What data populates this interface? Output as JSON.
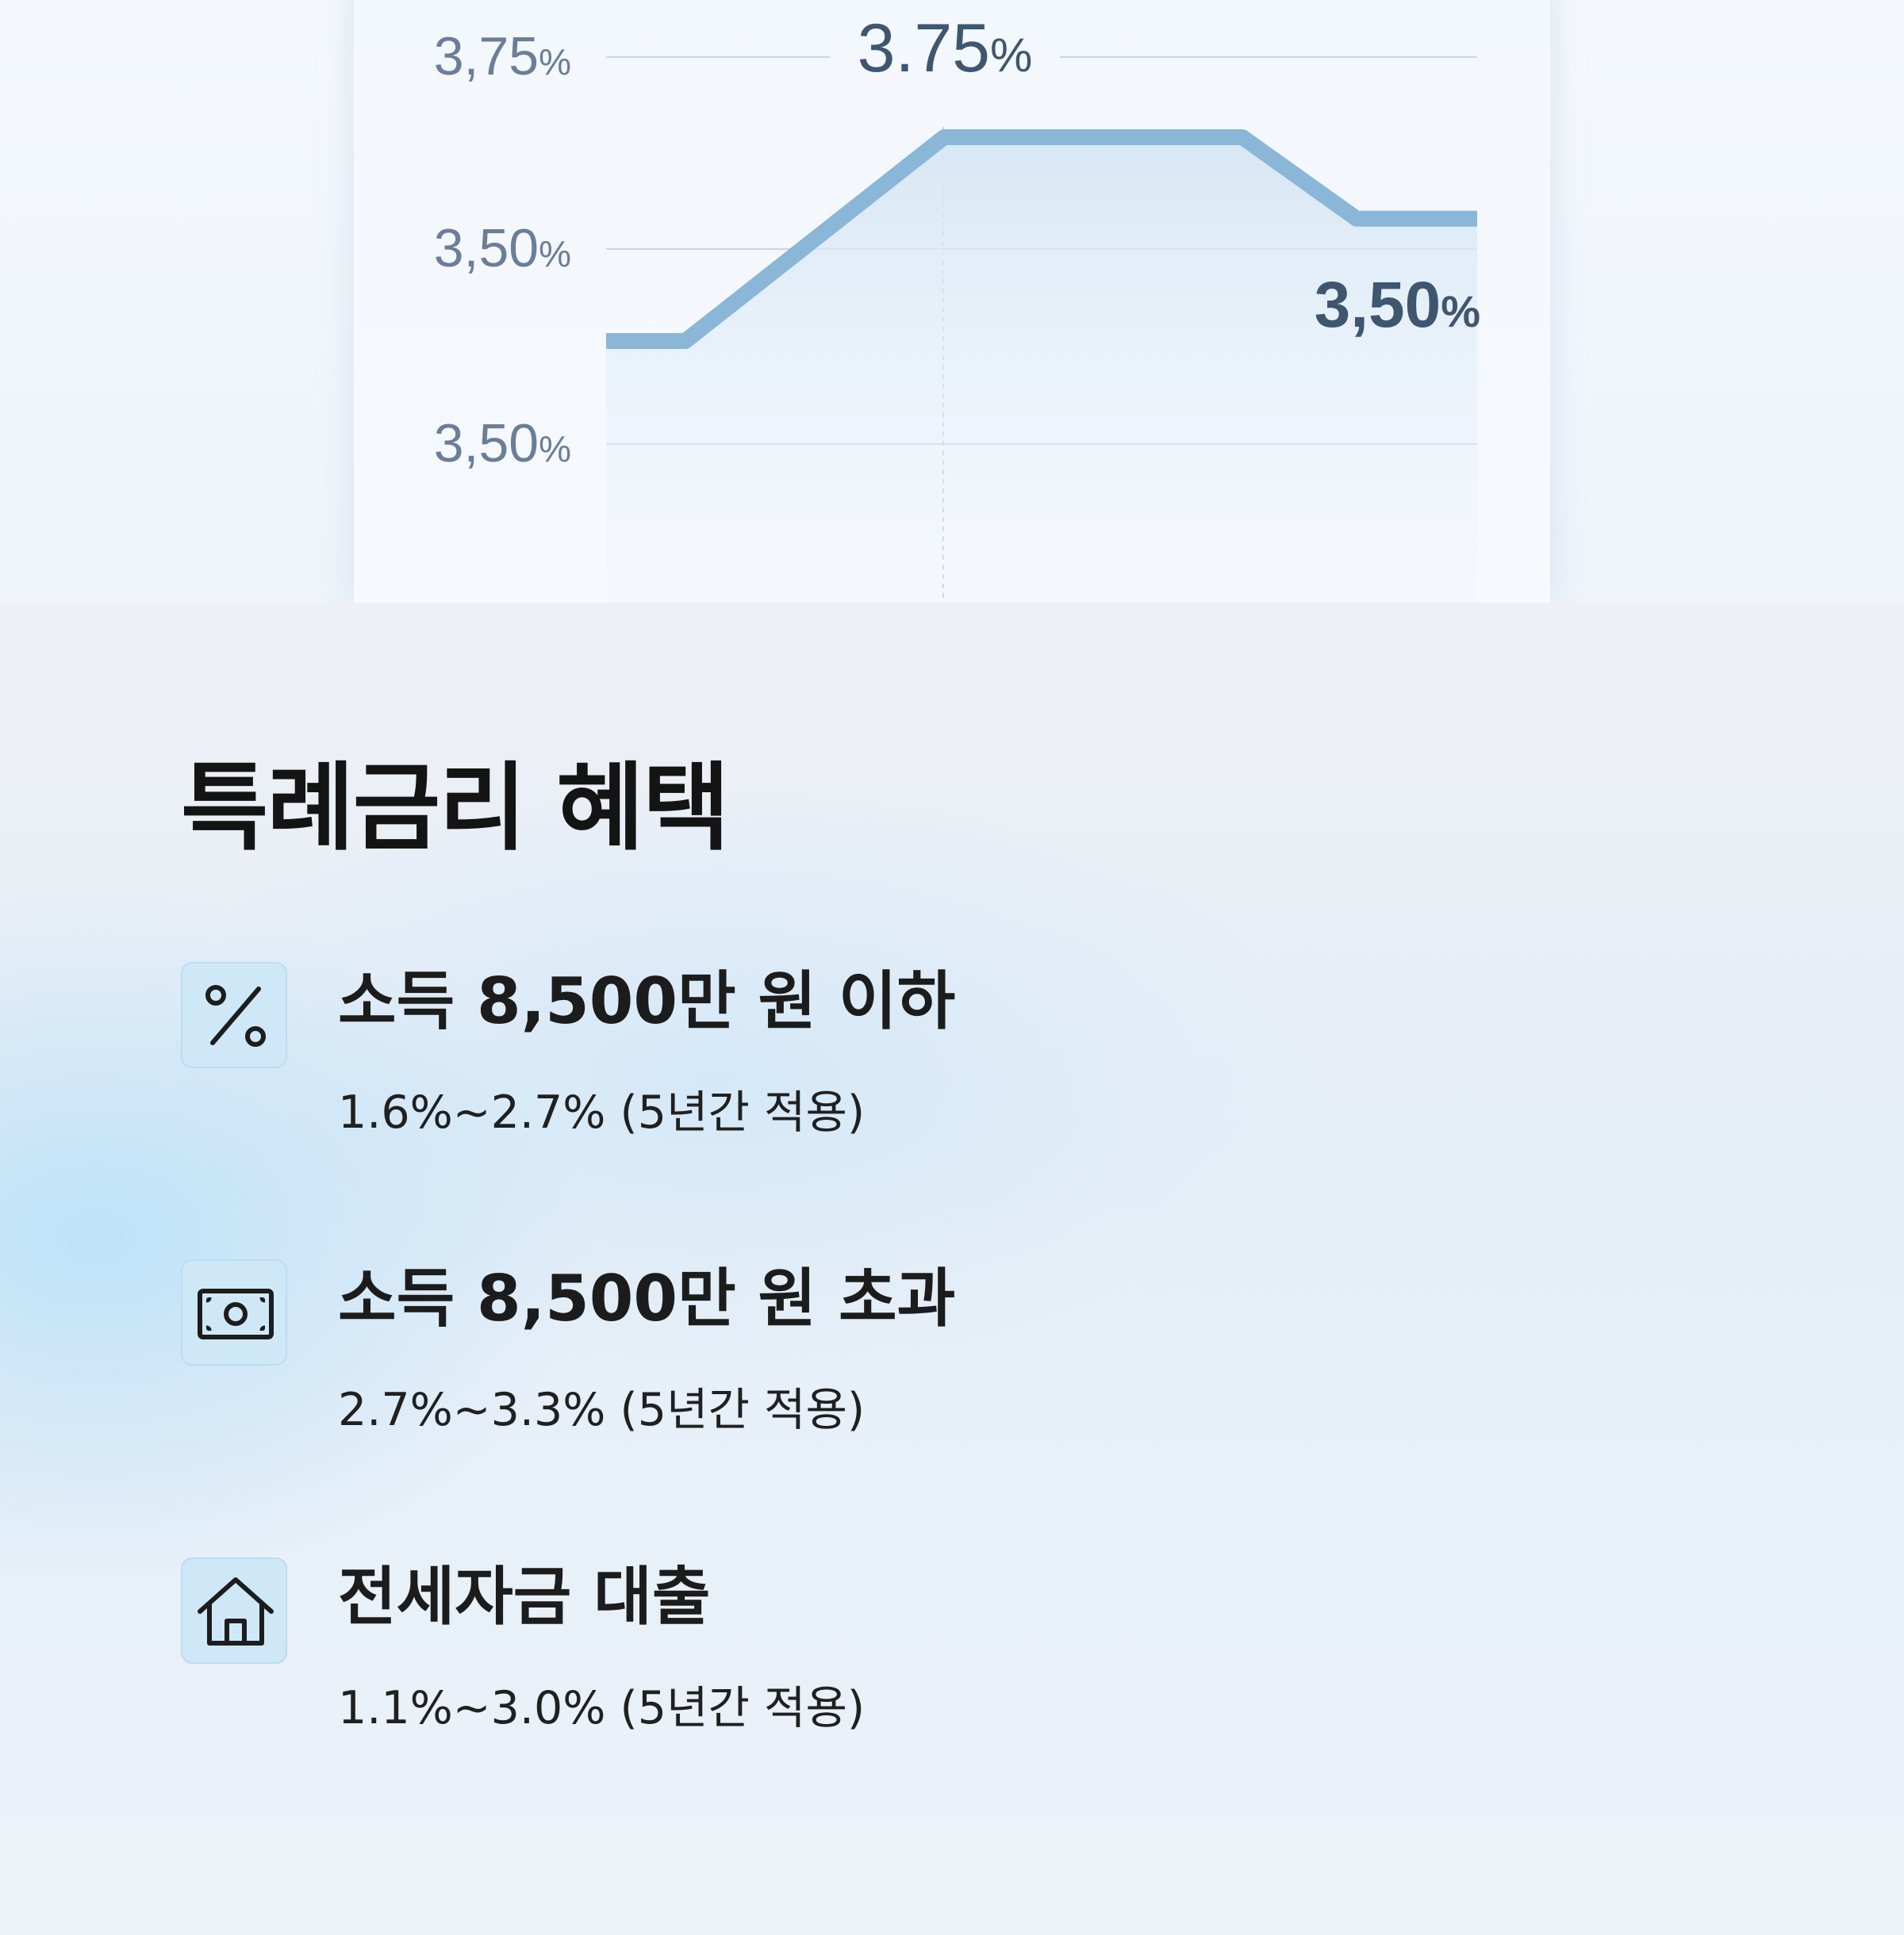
{
  "chart_data": {
    "type": "area",
    "y_axis_tick_labels": [
      "3,75%",
      "3,50%",
      "3,50%"
    ],
    "points": [
      3.45,
      3.45,
      3.7,
      3.7,
      3.7,
      3.6,
      3.6
    ],
    "annotations": [
      "3.75%",
      "3,50%"
    ],
    "line_color": "#8ab6d8",
    "fill_color": "#dce9f5",
    "grid": true
  },
  "benefits_section": {
    "title": "특례금리 혜택",
    "items": [
      {
        "icon": "percent-icon",
        "title": "소득 8,500만 원 이하",
        "rate": "1.6%~2.7% (5년간 적용)"
      },
      {
        "icon": "money-icon",
        "title": "소득 8,500만 원 초과",
        "rate": "2.7%~3.3% (5년간 적용)"
      },
      {
        "icon": "home-icon",
        "title": "전세자금 대출",
        "rate": "1.1%~3.0% (5년간 적용)"
      }
    ]
  },
  "colors": {
    "axis_text": "#6a7e98",
    "annotation_text": "#3f5670",
    "grid": "#c9d6e6",
    "title_text": "#141414",
    "icon_bg": "#cfe8f8"
  }
}
